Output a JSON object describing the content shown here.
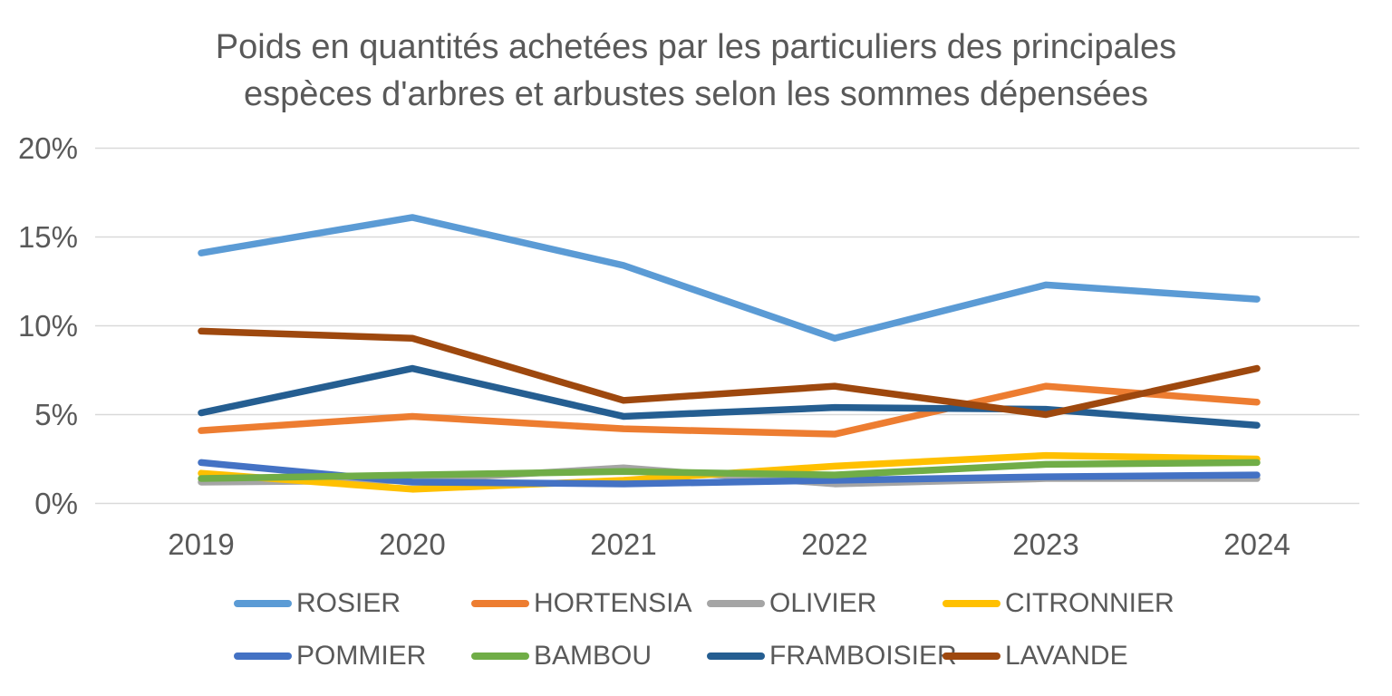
{
  "title": "Poids en quantités achetées par les particuliers des principales espèces d'arbres et arbustes selon les sommes dépensées",
  "title_lines": [
    "Poids en quantités achetées par les particuliers des principales",
    "espèces d'arbres et arbustes selon les sommes dépensées"
  ],
  "colors": {
    "text": "#595959",
    "gridline": "#D9D9D9",
    "background": "#FFFFFF"
  },
  "chart_data": {
    "type": "line",
    "title": "Poids en quantités achetées par les particuliers des principales espèces d'arbres et arbustes selon les sommes dépensées",
    "x_labels": [
      "2019",
      "2020",
      "2021",
      "2022",
      "2023",
      "2024"
    ],
    "y_axis": {
      "min": 0,
      "max": 20,
      "unit": "%",
      "tick_values_top_to_bottom": [
        20,
        15,
        10,
        5,
        0
      ],
      "tick_labels_top_to_bottom": [
        "20%",
        "15%",
        "10%",
        "5%",
        "0%"
      ]
    },
    "grid": true,
    "legend_position": "bottom",
    "series": [
      {
        "name": "ROSIER",
        "color": "#5B9BD5",
        "values": [
          14.1,
          16.1,
          13.4,
          9.3,
          12.3,
          11.5
        ]
      },
      {
        "name": "HORTENSIA",
        "color": "#ED7D31",
        "values": [
          4.1,
          4.9,
          4.2,
          3.9,
          6.6,
          5.7
        ]
      },
      {
        "name": "OLIVIER",
        "color": "#A5A5A5",
        "values": [
          1.2,
          1.3,
          2.0,
          1.1,
          1.4,
          1.4
        ]
      },
      {
        "name": "CITRONNIER",
        "color": "#FFC000",
        "values": [
          1.7,
          0.8,
          1.3,
          2.1,
          2.7,
          2.5
        ]
      },
      {
        "name": "POMMIER",
        "color": "#4472C4",
        "values": [
          2.3,
          1.2,
          1.1,
          1.3,
          1.5,
          1.6
        ]
      },
      {
        "name": "BAMBOU",
        "color": "#70AD47",
        "values": [
          1.4,
          1.6,
          1.8,
          1.6,
          2.2,
          2.3
        ]
      },
      {
        "name": "FRAMBOISIER",
        "color": "#255E91",
        "values": [
          5.1,
          7.6,
          4.9,
          5.4,
          5.3,
          4.4
        ]
      },
      {
        "name": "LAVANDE",
        "color": "#9E480E",
        "values": [
          9.7,
          9.3,
          5.8,
          6.6,
          5.0,
          7.6
        ]
      }
    ]
  }
}
